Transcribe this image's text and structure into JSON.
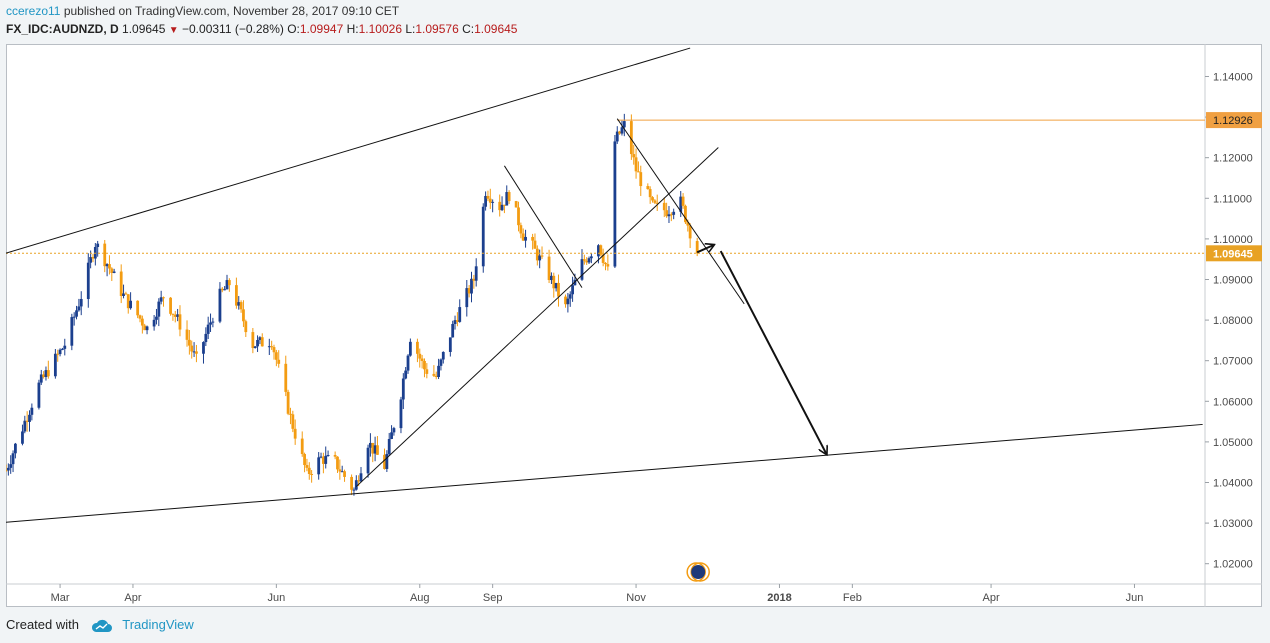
{
  "header": {
    "author": "ccerezo11",
    "published_text": " published on TradingView.com, November 28, 2017 09:10 CET",
    "symbol": "FX_IDC:AUDNZD, D",
    "last": "1.09645",
    "change": "−0.00311 (−0.28%)",
    "o_label": "O:",
    "o_value": "1.09947",
    "h_label": "H:",
    "h_value": "1.10026",
    "l_label": "L:",
    "l_value": "1.09576",
    "c_label": "C:",
    "c_value": "1.09645"
  },
  "footer": {
    "created_with": "Created with",
    "brand": "TradingView"
  },
  "colors": {
    "up": "#1b3f8e",
    "down": "#f39c12",
    "line": "#111111",
    "hline": "#f0a042",
    "price_line": "#e8a224",
    "axis_text": "#4a4a4a"
  },
  "chart_data": {
    "type": "candlestick",
    "symbol": "AUDNZD",
    "interval": "D",
    "ylim": [
      1.015,
      1.148
    ],
    "y_ticks": [
      "1.14000",
      "1.13000",
      "1.12000",
      "1.11000",
      "1.10000",
      "1.09000",
      "1.08000",
      "1.07000",
      "1.06000",
      "1.05000",
      "1.04000",
      "1.03000",
      "1.02000"
    ],
    "x_ticks": [
      {
        "label": "Mar",
        "date": "2017-03-01"
      },
      {
        "label": "Apr",
        "date": "2017-04-01"
      },
      {
        "label": "Jun",
        "date": "2017-06-01"
      },
      {
        "label": "Aug",
        "date": "2017-08-01"
      },
      {
        "label": "Sep",
        "date": "2017-09-01"
      },
      {
        "label": "Nov",
        "date": "2017-11-01"
      },
      {
        "label": "2018",
        "date": "2018-01-01"
      },
      {
        "label": "Feb",
        "date": "2018-02-01"
      },
      {
        "label": "Apr",
        "date": "2018-04-01"
      },
      {
        "label": "Jun",
        "date": "2018-06-01"
      }
    ],
    "x_range": [
      "2017-02-06",
      "2018-07-01"
    ],
    "last_price": {
      "label": "1.09645",
      "value": 1.09645
    },
    "level": {
      "label": "1.12926",
      "value": 1.12926,
      "from": "2017-10-24"
    },
    "anchors": [
      [
        "2017-02-06",
        1.043
      ],
      [
        "2017-02-20",
        1.064
      ],
      [
        "2017-03-03",
        1.074
      ],
      [
        "2017-03-10",
        1.086
      ],
      [
        "2017-03-16",
        1.099
      ],
      [
        "2017-03-21",
        1.094
      ],
      [
        "2017-03-28",
        1.086
      ],
      [
        "2017-04-07",
        1.078
      ],
      [
        "2017-04-14",
        1.086
      ],
      [
        "2017-04-21",
        1.079
      ],
      [
        "2017-04-28",
        1.07
      ],
      [
        "2017-05-08",
        1.086
      ],
      [
        "2017-05-12",
        1.089
      ],
      [
        "2017-05-22",
        1.074
      ],
      [
        "2017-05-30",
        1.075
      ],
      [
        "2017-06-07",
        1.056
      ],
      [
        "2017-06-14",
        1.042
      ],
      [
        "2017-06-20",
        1.046
      ],
      [
        "2017-06-26",
        1.045
      ],
      [
        "2017-07-04",
        1.038
      ],
      [
        "2017-07-10",
        1.05
      ],
      [
        "2017-07-17",
        1.044
      ],
      [
        "2017-07-24",
        1.062
      ],
      [
        "2017-07-28",
        1.076
      ],
      [
        "2017-08-03",
        1.068
      ],
      [
        "2017-08-08",
        1.066
      ],
      [
        "2017-08-16",
        1.08
      ],
      [
        "2017-08-24",
        1.09
      ],
      [
        "2017-08-29",
        1.112
      ],
      [
        "2017-09-04",
        1.108
      ],
      [
        "2017-09-08",
        1.111
      ],
      [
        "2017-09-14",
        1.101
      ],
      [
        "2017-09-18",
        1.098
      ],
      [
        "2017-09-25",
        1.091
      ],
      [
        "2017-10-02",
        1.083
      ],
      [
        "2017-10-09",
        1.094
      ],
      [
        "2017-10-16",
        1.099
      ],
      [
        "2017-10-20",
        1.092
      ],
      [
        "2017-10-23",
        1.124
      ],
      [
        "2017-10-27",
        1.128
      ],
      [
        "2017-11-01",
        1.117
      ],
      [
        "2017-11-08",
        1.108
      ],
      [
        "2017-11-14",
        1.107
      ],
      [
        "2017-11-20",
        1.109
      ],
      [
        "2017-11-27",
        1.0965
      ]
    ],
    "drawings": [
      {
        "from": [
          "2017-02-06",
          1.0965
        ],
        "to": [
          "2017-11-24",
          1.147
        ]
      },
      {
        "from": [
          "2017-02-06",
          1.0302
        ],
        "to": [
          "2018-06-30",
          1.0543
        ]
      },
      {
        "from": [
          "2017-07-05",
          1.039
        ],
        "to": [
          "2017-12-06",
          1.1225
        ]
      },
      {
        "from": [
          "2017-09-06",
          1.118
        ],
        "to": [
          "2017-10-09",
          1.088
        ]
      },
      {
        "from": [
          "2017-10-24",
          1.1296
        ],
        "to": [
          "2017-12-17",
          1.084
        ]
      },
      {
        "from": [
          "2017-11-27",
          1.0967
        ],
        "to": [
          "2017-12-04",
          1.0985
        ],
        "arrow": true
      },
      {
        "from": [
          "2017-12-07",
          1.097
        ],
        "to": [
          "2018-01-21",
          1.047
        ],
        "arrow": true
      }
    ]
  }
}
